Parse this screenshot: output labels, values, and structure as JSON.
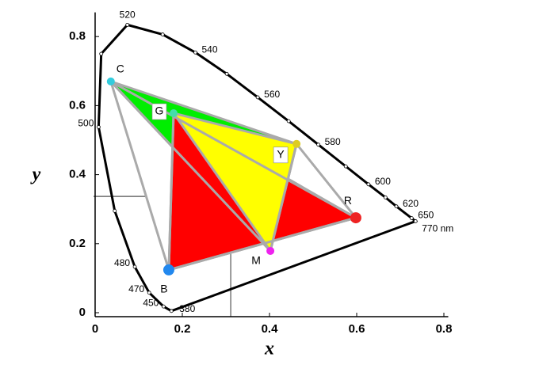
{
  "chart_data": {
    "type": "scatter",
    "x_label": "x",
    "y_label": "y",
    "xlim": [
      0,
      0.81
    ],
    "ylim": [
      0,
      0.87
    ],
    "xticks": [
      0,
      0.2,
      0.4,
      0.6,
      0.8
    ],
    "yticks": [
      0,
      0.2,
      0.4,
      0.6,
      0.8
    ],
    "points": {
      "labels": [
        "C",
        "G",
        "Y",
        "R",
        "M",
        "B"
      ],
      "x": [
        0.036,
        0.18,
        0.462,
        0.598,
        0.402,
        0.169
      ],
      "y": [
        0.67,
        0.578,
        0.489,
        0.275,
        0.179,
        0.124
      ],
      "colors": [
        "#33ccdd",
        "#44ddaa",
        "#ddcc22",
        "#ee2222",
        "#ee22ee",
        "#2288ee"
      ]
    },
    "locus": {
      "labels": [
        "380",
        "450",
        "470",
        "480",
        null,
        "500",
        null,
        "520",
        null,
        "540",
        null,
        "560",
        null,
        "580",
        null,
        "600",
        null,
        "620",
        "650",
        "770 nm"
      ],
      "x": [
        0.175,
        0.157,
        0.124,
        0.091,
        0.045,
        0.008,
        0.014,
        0.074,
        0.155,
        0.23,
        0.302,
        0.373,
        0.444,
        0.512,
        0.575,
        0.627,
        0.666,
        0.691,
        0.726,
        0.735
      ],
      "y": [
        0.005,
        0.018,
        0.058,
        0.133,
        0.295,
        0.538,
        0.75,
        0.834,
        0.806,
        0.754,
        0.692,
        0.624,
        0.555,
        0.487,
        0.424,
        0.372,
        0.334,
        0.308,
        0.274,
        0.265
      ]
    },
    "white_point": {
      "x": 0.311,
      "y": 0.337
    }
  }
}
